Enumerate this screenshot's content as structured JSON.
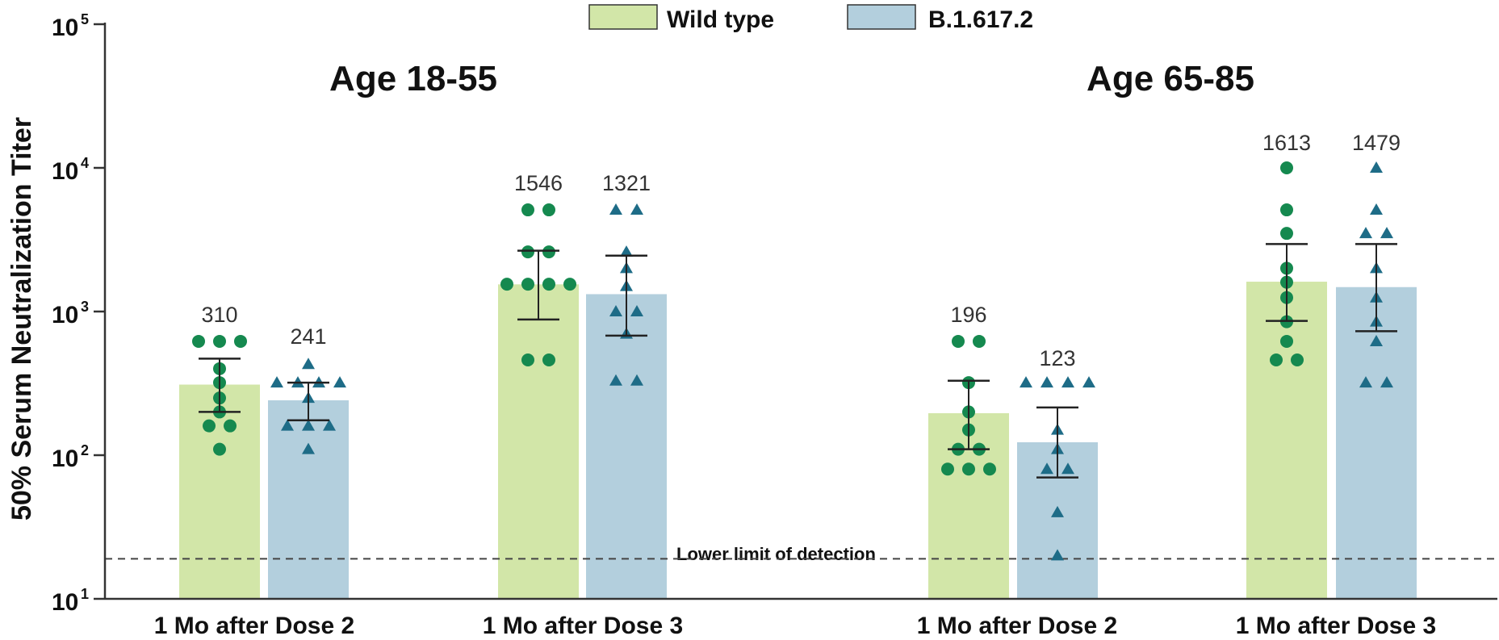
{
  "chart_data": {
    "type": "bar",
    "scale": "log",
    "ylim": [
      10,
      100000
    ],
    "ylabel": "50% Serum Neutralization Titer",
    "y_ticks": [
      {
        "base": "10",
        "exp": "1",
        "value": 10
      },
      {
        "base": "10",
        "exp": "2",
        "value": 100
      },
      {
        "base": "10",
        "exp": "3",
        "value": 1000
      },
      {
        "base": "10",
        "exp": "4",
        "value": 10000
      },
      {
        "base": "10",
        "exp": "5",
        "value": 100000
      }
    ],
    "legend": {
      "position": "top-center",
      "entries": [
        {
          "name": "Wild type",
          "color": "#d2e6a8"
        },
        {
          "name": "B.1.617.2",
          "color": "#b3cfdd"
        }
      ]
    },
    "lower_limit": {
      "label": "Lower limit of detection",
      "value": 19
    },
    "point_colors": {
      "Wild type": "#15894f",
      "B.1.617.2": "#1e6c87"
    },
    "groups": [
      {
        "title": "Age 18-55",
        "categories": [
          "1 Mo after Dose 2",
          "1 Mo after Dose 3"
        ],
        "series": [
          {
            "name": "Wild type",
            "values": [
              310,
              1546
            ],
            "labels": [
              "310",
              "1546"
            ],
            "ci": [
              [
                200,
                470
              ],
              [
                880,
                2650
              ]
            ],
            "points": [
              [
                620,
                620,
                620,
                400,
                320,
                250,
                200,
                160,
                160,
                110
              ],
              [
                5100,
                5100,
                2600,
                2600,
                1550,
                1550,
                1550,
                1550,
                460,
                460
              ]
            ]
          },
          {
            "name": "B.1.617.2",
            "values": [
              241,
              1321
            ],
            "labels": [
              "241",
              "1321"
            ],
            "ci": [
              [
                175,
                320
              ],
              [
                680,
                2450
              ]
            ],
            "points": [
              [
                430,
                320,
                320,
                320,
                320,
                250,
                160,
                160,
                160,
                110
              ],
              [
                5100,
                5100,
                2600,
                2000,
                1500,
                1000,
                1000,
                700,
                330,
                330
              ]
            ]
          }
        ]
      },
      {
        "title": "Age 65-85",
        "categories": [
          "1 Mo after Dose 2",
          "1 Mo after Dose 3"
        ],
        "series": [
          {
            "name": "Wild type",
            "values": [
              196,
              1613
            ],
            "labels": [
              "196",
              "1613"
            ],
            "ci": [
              [
                110,
                330
              ],
              [
                860,
                2950
              ]
            ],
            "points": [
              [
                620,
                620,
                320,
                200,
                150,
                110,
                110,
                80,
                80,
                80
              ],
              [
                10000,
                5100,
                3500,
                2000,
                1600,
                1250,
                850,
                620,
                460,
                460
              ]
            ]
          },
          {
            "name": "B.1.617.2",
            "values": [
              123,
              1479
            ],
            "labels": [
              "123",
              "1479"
            ],
            "ci": [
              [
                70,
                215
              ],
              [
                730,
                2950
              ]
            ],
            "points": [
              [
                320,
                320,
                320,
                320,
                150,
                110,
                80,
                80,
                40,
                20
              ],
              [
                10000,
                5100,
                3500,
                3500,
                2000,
                1250,
                850,
                620,
                320,
                320
              ]
            ]
          }
        ]
      }
    ]
  }
}
